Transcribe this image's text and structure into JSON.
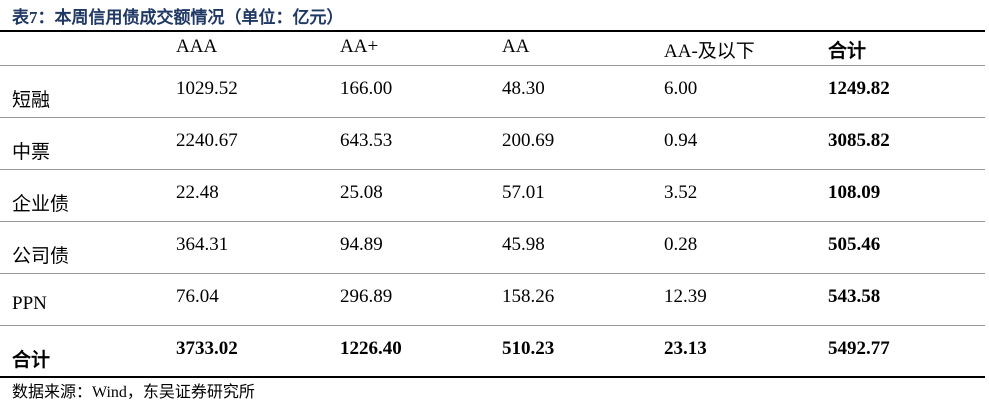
{
  "header": {
    "title": "表7：本周信用债成交额情况（单位：亿元）"
  },
  "table": {
    "columns": [
      "AAA",
      "AA+",
      "AA",
      "AA-及以下",
      "合计"
    ],
    "rows": [
      {
        "label": "短融",
        "values": [
          "1029.52",
          "166.00",
          "48.30",
          "6.00",
          "1249.82"
        ]
      },
      {
        "label": "中票",
        "values": [
          "2240.67",
          "643.53",
          "200.69",
          "0.94",
          "3085.82"
        ]
      },
      {
        "label": "企业债",
        "values": [
          "22.48",
          "25.08",
          "57.01",
          "3.52",
          "108.09"
        ]
      },
      {
        "label": "公司债",
        "values": [
          "364.31",
          "94.89",
          "45.98",
          "0.28",
          "505.46"
        ]
      },
      {
        "label": "PPN",
        "values": [
          "76.04",
          "296.89",
          "158.26",
          "12.39",
          "543.58"
        ]
      },
      {
        "label": "合计",
        "values": [
          "3733.02",
          "1226.40",
          "510.23",
          "23.13",
          "5492.77"
        ]
      }
    ]
  },
  "footer": {
    "source": "数据来源：Wind，东吴证券研究所"
  }
}
